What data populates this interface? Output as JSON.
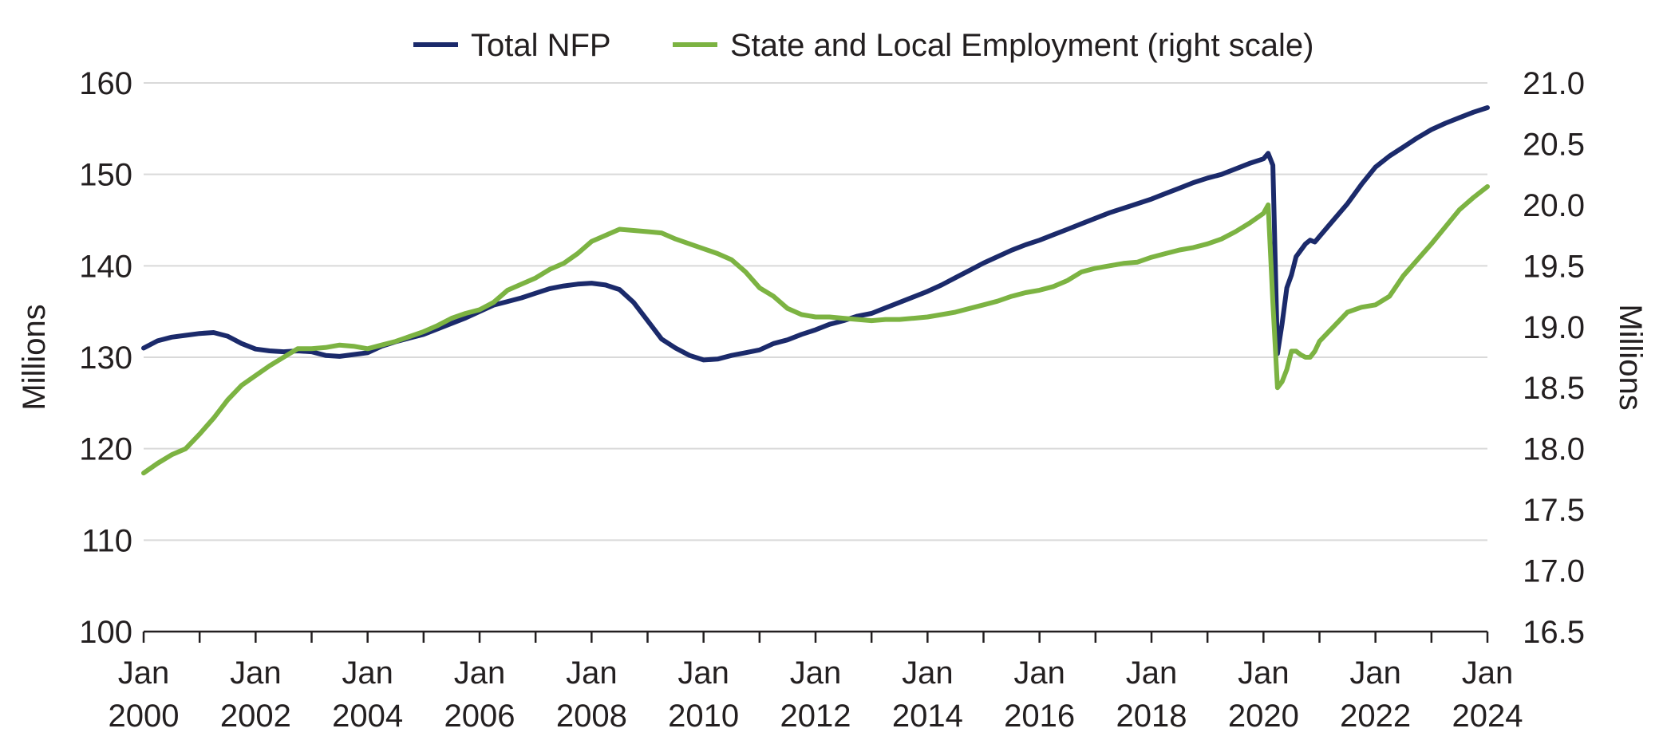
{
  "chart_data": {
    "type": "line",
    "legend_position": "top-center",
    "grid": "horizontal",
    "colors": {
      "nfp": "#1b2a6b",
      "state_local": "#7cb342",
      "text": "#231f20",
      "grid": "#d9d9d9"
    },
    "left_axis": {
      "label": "Millions",
      "ylim": [
        100,
        160
      ],
      "ticks": [
        "100",
        "110",
        "120",
        "130",
        "140",
        "150",
        "160"
      ]
    },
    "right_axis": {
      "label": "Millions",
      "ylim": [
        16.5,
        21.0
      ],
      "ticks": [
        "16.5",
        "17.0",
        "17.5",
        "18.0",
        "18.5",
        "19.0",
        "19.5",
        "20.0",
        "20.5",
        "21.0"
      ]
    },
    "x_axis": {
      "xlim": [
        2000.0,
        2024.0
      ],
      "tick_labels": [
        {
          "year": 2000,
          "month": "Jan",
          "label": "2000"
        },
        {
          "year": 2002,
          "month": "Jan",
          "label": "2002"
        },
        {
          "year": 2004,
          "month": "Jan",
          "label": "2004"
        },
        {
          "year": 2006,
          "month": "Jan",
          "label": "2006"
        },
        {
          "year": 2008,
          "month": "Jan",
          "label": "2008"
        },
        {
          "year": 2010,
          "month": "Jan",
          "label": "2010"
        },
        {
          "year": 2012,
          "month": "Jan",
          "label": "2012"
        },
        {
          "year": 2014,
          "month": "Jan",
          "label": "2014"
        },
        {
          "year": 2016,
          "month": "Jan",
          "label": "2016"
        },
        {
          "year": 2018,
          "month": "Jan",
          "label": "2018"
        },
        {
          "year": 2020,
          "month": "Jan",
          "label": "2020"
        },
        {
          "year": 2022,
          "month": "Jan",
          "label": "2022"
        },
        {
          "year": 2024,
          "month": "Jan",
          "label": "2024"
        }
      ],
      "minor_tick_years": [
        2001,
        2003,
        2005,
        2007,
        2009,
        2011,
        2013,
        2015,
        2017,
        2019,
        2021,
        2023
      ]
    },
    "series": [
      {
        "name": "Total NFP",
        "axis": "left",
        "x": [
          2000.0,
          2000.25,
          2000.5,
          2000.75,
          2001.0,
          2001.25,
          2001.5,
          2001.75,
          2002.0,
          2002.25,
          2002.5,
          2002.75,
          2003.0,
          2003.25,
          2003.5,
          2003.75,
          2004.0,
          2004.25,
          2004.5,
          2004.75,
          2005.0,
          2005.25,
          2005.5,
          2005.75,
          2006.0,
          2006.25,
          2006.5,
          2006.75,
          2007.0,
          2007.25,
          2007.5,
          2007.75,
          2008.0,
          2008.25,
          2008.5,
          2008.75,
          2009.0,
          2009.25,
          2009.5,
          2009.75,
          2010.0,
          2010.25,
          2010.5,
          2010.75,
          2011.0,
          2011.25,
          2011.5,
          2011.75,
          2012.0,
          2012.25,
          2012.5,
          2012.75,
          2013.0,
          2013.25,
          2013.5,
          2013.75,
          2014.0,
          2014.25,
          2014.5,
          2014.75,
          2015.0,
          2015.25,
          2015.5,
          2015.75,
          2016.0,
          2016.25,
          2016.5,
          2016.75,
          2017.0,
          2017.25,
          2017.5,
          2017.75,
          2018.0,
          2018.25,
          2018.5,
          2018.75,
          2019.0,
          2019.25,
          2019.5,
          2019.75,
          2020.0,
          2020.083,
          2020.167,
          2020.25,
          2020.333,
          2020.417,
          2020.5,
          2020.583,
          2020.667,
          2020.75,
          2020.833,
          2020.917,
          2021.0,
          2021.25,
          2021.5,
          2021.75,
          2022.0,
          2022.25,
          2022.5,
          2022.75,
          2023.0,
          2023.25,
          2023.5,
          2023.75,
          2024.0
        ],
        "y": [
          131.0,
          131.8,
          132.2,
          132.4,
          132.6,
          132.7,
          132.3,
          131.5,
          130.9,
          130.7,
          130.6,
          130.7,
          130.6,
          130.2,
          130.1,
          130.3,
          130.5,
          131.2,
          131.7,
          132.1,
          132.5,
          133.1,
          133.7,
          134.3,
          135.0,
          135.7,
          136.1,
          136.5,
          137.0,
          137.5,
          137.8,
          138.0,
          138.1,
          137.9,
          137.4,
          136.0,
          134.0,
          132.0,
          131.0,
          130.2,
          129.7,
          129.8,
          130.2,
          130.5,
          130.8,
          131.5,
          131.9,
          132.5,
          133.0,
          133.6,
          134.0,
          134.5,
          134.8,
          135.4,
          136.0,
          136.6,
          137.2,
          137.9,
          138.7,
          139.5,
          140.3,
          141.0,
          141.7,
          142.3,
          142.8,
          143.4,
          144.0,
          144.6,
          145.2,
          145.8,
          146.3,
          146.8,
          147.3,
          147.9,
          148.5,
          149.1,
          149.6,
          150.0,
          150.6,
          151.2,
          151.7,
          152.3,
          151.0,
          130.4,
          133.7,
          137.6,
          139.0,
          141.0,
          141.7,
          142.4,
          142.8,
          142.6,
          143.2,
          145.0,
          146.8,
          148.9,
          150.8,
          152.0,
          153.0,
          154.0,
          154.9,
          155.6,
          156.2,
          156.8,
          157.3
        ]
      },
      {
        "name": "State and Local Employment (right scale)",
        "axis": "right",
        "x": [
          2000.0,
          2000.25,
          2000.5,
          2000.75,
          2001.0,
          2001.25,
          2001.5,
          2001.75,
          2002.0,
          2002.25,
          2002.5,
          2002.75,
          2003.0,
          2003.25,
          2003.5,
          2003.75,
          2004.0,
          2004.25,
          2004.5,
          2004.75,
          2005.0,
          2005.25,
          2005.5,
          2005.75,
          2006.0,
          2006.25,
          2006.5,
          2006.75,
          2007.0,
          2007.25,
          2007.5,
          2007.75,
          2008.0,
          2008.25,
          2008.5,
          2008.75,
          2009.0,
          2009.25,
          2009.5,
          2009.75,
          2010.0,
          2010.25,
          2010.5,
          2010.75,
          2011.0,
          2011.25,
          2011.5,
          2011.75,
          2012.0,
          2012.25,
          2012.5,
          2012.75,
          2013.0,
          2013.25,
          2013.5,
          2013.75,
          2014.0,
          2014.25,
          2014.5,
          2014.75,
          2015.0,
          2015.25,
          2015.5,
          2015.75,
          2016.0,
          2016.25,
          2016.5,
          2016.75,
          2017.0,
          2017.25,
          2017.5,
          2017.75,
          2018.0,
          2018.25,
          2018.5,
          2018.75,
          2019.0,
          2019.25,
          2019.5,
          2019.75,
          2020.0,
          2020.083,
          2020.167,
          2020.25,
          2020.333,
          2020.417,
          2020.5,
          2020.583,
          2020.667,
          2020.75,
          2020.833,
          2020.917,
          2021.0,
          2021.25,
          2021.5,
          2021.75,
          2022.0,
          2022.25,
          2022.5,
          2022.75,
          2023.0,
          2023.25,
          2023.5,
          2023.75,
          2024.0
        ],
        "y": [
          17.8,
          17.88,
          17.95,
          18.0,
          18.12,
          18.25,
          18.4,
          18.52,
          18.6,
          18.68,
          18.75,
          18.82,
          18.82,
          18.83,
          18.85,
          18.84,
          18.82,
          18.85,
          18.88,
          18.92,
          18.96,
          19.01,
          19.07,
          19.11,
          19.14,
          19.2,
          19.3,
          19.35,
          19.4,
          19.47,
          19.52,
          19.6,
          19.7,
          19.75,
          19.8,
          19.79,
          19.78,
          19.77,
          19.72,
          19.68,
          19.64,
          19.6,
          19.55,
          19.45,
          19.32,
          19.25,
          19.15,
          19.1,
          19.08,
          19.08,
          19.07,
          19.06,
          19.05,
          19.06,
          19.06,
          19.07,
          19.08,
          19.1,
          19.12,
          19.15,
          19.18,
          19.21,
          19.25,
          19.28,
          19.3,
          19.33,
          19.38,
          19.45,
          19.48,
          19.5,
          19.52,
          19.53,
          19.57,
          19.6,
          19.63,
          19.65,
          19.68,
          19.72,
          19.78,
          19.85,
          19.93,
          20.0,
          19.2,
          18.5,
          18.55,
          18.65,
          18.8,
          18.8,
          18.77,
          18.75,
          18.75,
          18.8,
          18.88,
          19.0,
          19.12,
          19.16,
          19.18,
          19.25,
          19.42,
          19.55,
          19.68,
          19.82,
          19.96,
          20.06,
          20.15
        ]
      }
    ]
  }
}
